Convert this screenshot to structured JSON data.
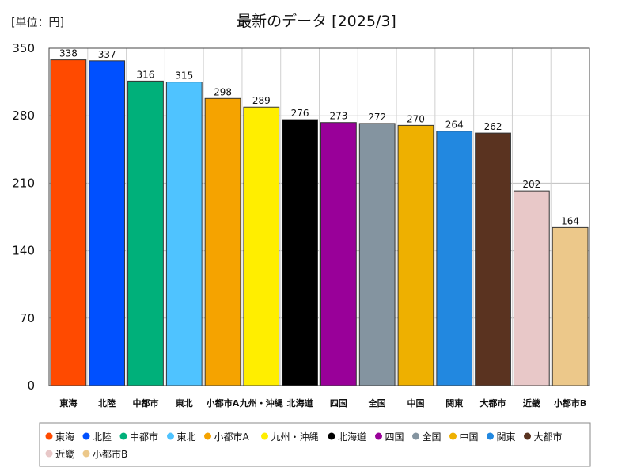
{
  "unit_label": "[単位：円]",
  "chart_data": {
    "type": "bar",
    "title": "最新のデータ [2025/3]",
    "categories": [
      "東海",
      "北陸",
      "中都市",
      "東北",
      "小都市A",
      "九州・沖縄",
      "北海道",
      "四国",
      "全国",
      "中国",
      "関東",
      "大都市",
      "近畿",
      "小都市B"
    ],
    "x_tick_labels": [
      "東海",
      "北陸",
      "中都市",
      "東北",
      "小都市A",
      "九州・沖縄",
      "北海道",
      "四国",
      "全国",
      "中国",
      "関東",
      "大都市",
      "近畿",
      "小都市B"
    ],
    "values": [
      338,
      337,
      316,
      315,
      298,
      289,
      276,
      273,
      272,
      270,
      264,
      262,
      202,
      164
    ],
    "colors": [
      "#ff4a00",
      "#0050ff",
      "#00b07a",
      "#4fc3ff",
      "#f5a300",
      "#ffee00",
      "#000000",
      "#990099",
      "#8494a0",
      "#eeb000",
      "#2288e0",
      "#5a3320",
      "#e8c8c8",
      "#ecc88a"
    ],
    "ylim": [
      0,
      350
    ],
    "yticks": [
      0,
      70,
      140,
      210,
      280,
      350
    ],
    "xlabel": "",
    "ylabel": "",
    "grid": true,
    "legend_position": "bottom",
    "legend": [
      "東海",
      "北陸",
      "中都市",
      "東北",
      "小都市A",
      "九州・沖縄",
      "北海道",
      "四国",
      "全国",
      "中国",
      "関東",
      "大都市",
      "近畿",
      "小都市B"
    ]
  }
}
